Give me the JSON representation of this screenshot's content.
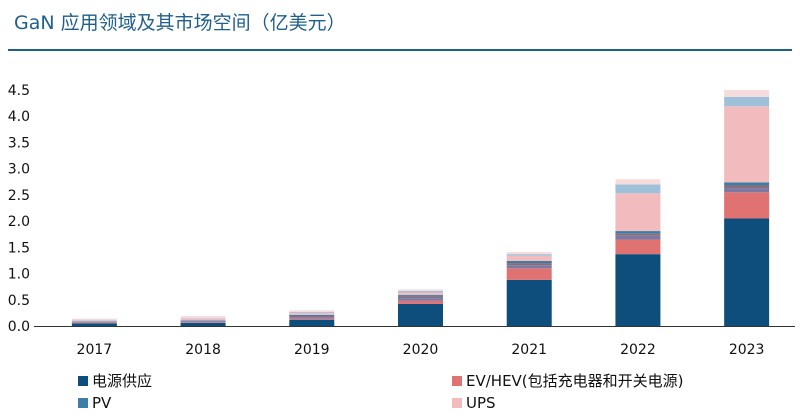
{
  "header": {
    "title": "GaN 应用领域及其市场空间（亿美元）"
  },
  "chart_data": {
    "type": "bar",
    "stacked": true,
    "title": "GaN 应用领域及其市场空间（亿美元）",
    "xlabel": "",
    "ylabel": "",
    "categories": [
      "2017",
      "2018",
      "2019",
      "2020",
      "2021",
      "2022",
      "2023"
    ],
    "ylim": [
      0,
      4.5
    ],
    "yticks": [
      "0.0",
      "0.5",
      "1.0",
      "1.5",
      "2.0",
      "2.5",
      "3.0",
      "3.5",
      "4.0",
      "4.5"
    ],
    "grid": false,
    "legend_position": "bottom",
    "series": [
      {
        "name": "电源供应",
        "color": "#0e4e7d",
        "values": [
          0.05,
          0.06,
          0.12,
          0.42,
          0.88,
          1.37,
          2.05
        ]
      },
      {
        "name": "EV/HEV(包括充电器和开关电源)",
        "color": "#e07272",
        "values": [
          0.01,
          0.01,
          0.02,
          0.06,
          0.22,
          0.28,
          0.5
        ]
      },
      {
        "name": "",
        "color": "#7a7aa6",
        "values": [
          0.01,
          0.02,
          0.03,
          0.05,
          0.06,
          0.07,
          0.08
        ]
      },
      {
        "name": "",
        "color": "#8f6b78",
        "values": [
          0.01,
          0.01,
          0.02,
          0.03,
          0.04,
          0.04,
          0.05
        ]
      },
      {
        "name": "PV",
        "color": "#3d7ea6",
        "values": [
          0.01,
          0.01,
          0.02,
          0.03,
          0.04,
          0.05,
          0.06
        ]
      },
      {
        "name": "UPS",
        "color": "#f2bcbf",
        "values": [
          0.02,
          0.03,
          0.04,
          0.05,
          0.1,
          0.72,
          1.45
        ]
      },
      {
        "name": "",
        "color": "#9ec0d9",
        "values": [
          0.01,
          0.01,
          0.02,
          0.03,
          0.03,
          0.17,
          0.18
        ]
      },
      {
        "name": "",
        "color": "#f7dcdd",
        "values": [
          0.02,
          0.04,
          0.03,
          0.03,
          0.04,
          0.1,
          0.13
        ]
      }
    ]
  },
  "legend": {
    "items": [
      {
        "label": "电源供应",
        "color": "#0e4e7d"
      },
      {
        "label": "EV/HEV(包括充电器和开关电源)",
        "color": "#e07272"
      },
      {
        "label": "PV",
        "color": "#3d7ea6"
      },
      {
        "label": "UPS",
        "color": "#f2bcbf"
      }
    ]
  }
}
